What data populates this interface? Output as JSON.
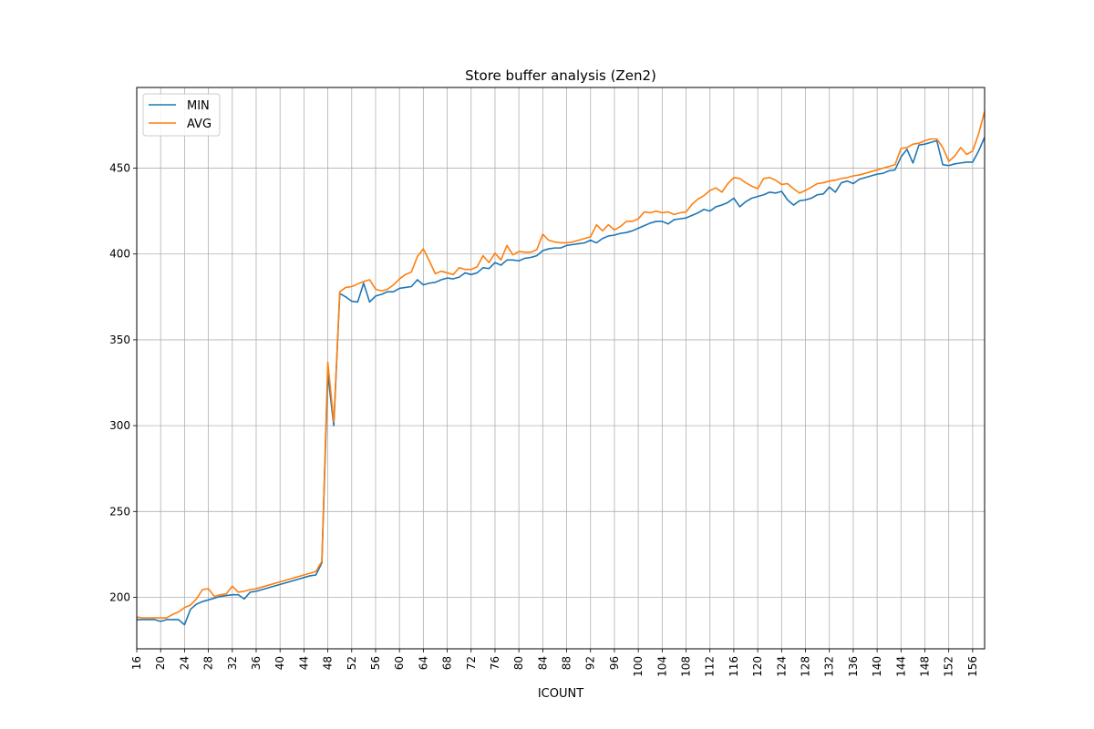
{
  "chart_data": {
    "type": "line",
    "title": "Store buffer analysis (Zen2)",
    "xlabel": "ICOUNT",
    "ylabel": "",
    "xlim": [
      16,
      158
    ],
    "ylim": [
      170,
      497
    ],
    "xticks": [
      16,
      20,
      24,
      28,
      32,
      36,
      40,
      44,
      48,
      52,
      56,
      60,
      64,
      68,
      72,
      76,
      80,
      84,
      88,
      92,
      96,
      100,
      104,
      108,
      112,
      116,
      120,
      124,
      128,
      132,
      136,
      140,
      144,
      148,
      152,
      156
    ],
    "yticks": [
      200,
      250,
      300,
      350,
      400,
      450
    ],
    "grid": true,
    "legend_position": "upper-left",
    "x": [
      16,
      17,
      18,
      19,
      20,
      21,
      22,
      23,
      24,
      25,
      26,
      27,
      28,
      29,
      30,
      31,
      32,
      33,
      34,
      35,
      36,
      37,
      38,
      39,
      40,
      41,
      42,
      43,
      44,
      45,
      46,
      47,
      48,
      49,
      50,
      51,
      52,
      53,
      54,
      55,
      56,
      57,
      58,
      59,
      60,
      61,
      62,
      63,
      64,
      65,
      66,
      67,
      68,
      69,
      70,
      71,
      72,
      73,
      74,
      75,
      76,
      77,
      78,
      79,
      80,
      81,
      82,
      83,
      84,
      85,
      86,
      87,
      88,
      89,
      90,
      91,
      92,
      93,
      94,
      95,
      96,
      97,
      98,
      99,
      100,
      101,
      102,
      103,
      104,
      105,
      106,
      107,
      108,
      109,
      110,
      111,
      112,
      113,
      114,
      115,
      116,
      117,
      118,
      119,
      120,
      121,
      122,
      123,
      124,
      125,
      126,
      127,
      128,
      129,
      130,
      131,
      132,
      133,
      134,
      135,
      136,
      137,
      138,
      139,
      140,
      141,
      142,
      143,
      144,
      145,
      146,
      147,
      148,
      149,
      150,
      151,
      152,
      153,
      154,
      155,
      156,
      157,
      158
    ],
    "series": [
      {
        "name": "MIN",
        "color": "#1f77b4",
        "values": [
          187,
          187,
          187,
          187,
          186,
          187,
          187,
          187,
          184,
          193,
          196,
          197.5,
          198.5,
          199.5,
          200.5,
          201,
          201.5,
          201.5,
          199,
          203,
          203.5,
          204.5,
          205.5,
          206.5,
          207.5,
          208.5,
          209.5,
          210.5,
          211.5,
          212.5,
          213,
          220,
          330,
          300,
          377,
          375,
          372.5,
          372,
          383,
          372,
          375.5,
          376.5,
          378,
          378,
          380,
          380.5,
          381,
          385,
          382,
          383,
          383.5,
          385,
          386,
          385.5,
          386.5,
          389,
          388,
          389,
          392,
          391.5,
          395,
          393.5,
          396.5,
          396.5,
          396,
          397.5,
          398,
          399,
          402,
          403,
          403.5,
          403.5,
          405,
          405.5,
          406,
          406.5,
          408,
          406.5,
          409,
          410.5,
          411,
          412,
          412.5,
          413.5,
          415,
          416.5,
          418,
          419,
          419,
          417.5,
          420,
          420.5,
          421,
          422.5,
          424,
          426,
          425,
          427.5,
          428.5,
          430,
          432.5,
          427.5,
          430.5,
          432.5,
          433.5,
          434.5,
          436,
          435.5,
          436.5,
          431.5,
          428.5,
          431,
          431.5,
          432.5,
          434.5,
          435,
          439,
          436,
          441.5,
          442.5,
          441,
          443.5,
          444.5,
          445.5,
          446.5,
          447,
          448.5,
          449,
          456.5,
          461,
          453,
          463.5,
          464,
          465,
          466,
          452,
          451.5,
          452.5,
          453,
          453.5,
          453.5,
          460,
          468
        ]
      },
      {
        "name": "AVG",
        "color": "#ff7f0e",
        "values": [
          188.5,
          188,
          188,
          188,
          188,
          188,
          190,
          191.5,
          194,
          195.5,
          199,
          204.5,
          205,
          200.5,
          201.5,
          202,
          206.5,
          203,
          203.5,
          204.5,
          205,
          206,
          207,
          208,
          209,
          210,
          211,
          212,
          213,
          214,
          215,
          221,
          337,
          302,
          378,
          380.5,
          381,
          382.5,
          384,
          385,
          379.5,
          378.5,
          379.5,
          382,
          385.5,
          388,
          389.5,
          398.5,
          403,
          396,
          388.5,
          390,
          389,
          388,
          392,
          391,
          391,
          392.5,
          399,
          395,
          400.5,
          396.5,
          405,
          399.5,
          401.5,
          401,
          401,
          402.5,
          411.5,
          408,
          407,
          406.5,
          406.5,
          407,
          408,
          409,
          410,
          417,
          413.5,
          417,
          414,
          416,
          419,
          419,
          420.5,
          424.5,
          424,
          425,
          424,
          424.5,
          423,
          424,
          424.5,
          429,
          432,
          434,
          437,
          438.5,
          436,
          441,
          444.5,
          444,
          441.5,
          439.5,
          438,
          444,
          444.5,
          443,
          440.5,
          441,
          438,
          435.5,
          437,
          439,
          441,
          441.5,
          442.5,
          443,
          444,
          444.5,
          445.5,
          446,
          447,
          448,
          449,
          450,
          451,
          452,
          461.5,
          462,
          464,
          464.5,
          466,
          467,
          467,
          462,
          454,
          457,
          462,
          458,
          460,
          470,
          483
        ]
      }
    ]
  }
}
